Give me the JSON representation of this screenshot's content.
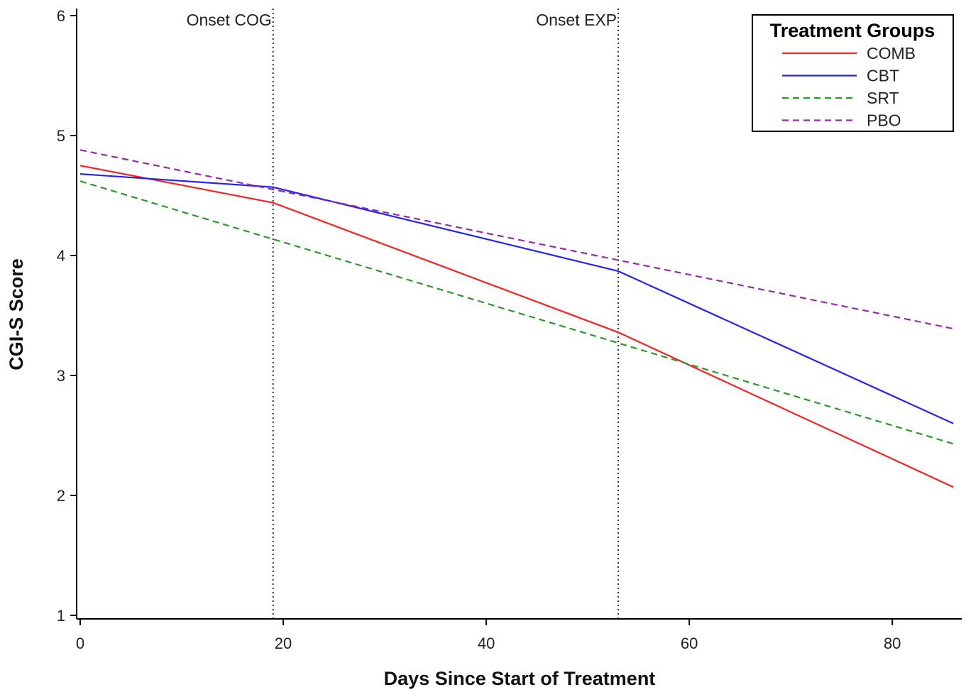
{
  "chart_data": {
    "type": "line",
    "xlabel": "Days Since Start of Treatment",
    "ylabel": "CGI-S Score",
    "xlim": [
      0,
      86
    ],
    "ylim": [
      1,
      6
    ],
    "xticks": [
      0,
      20,
      40,
      60,
      80
    ],
    "yticks": [
      1,
      2,
      3,
      4,
      5,
      6
    ],
    "grid": false,
    "legend": {
      "title": "Treatment Groups",
      "position": "top-right"
    },
    "reference_lines": [
      {
        "x": 19,
        "label": "Onset COG"
      },
      {
        "x": 53,
        "label": "Onset EXP"
      }
    ],
    "series": [
      {
        "name": "COMB",
        "color": "#ff2020",
        "dash": "solid",
        "x": [
          0,
          19,
          53,
          86
        ],
        "y": [
          4.75,
          4.44,
          3.36,
          2.07
        ]
      },
      {
        "name": "CBT",
        "color": "#2222ff",
        "dash": "solid",
        "x": [
          0,
          19,
          53,
          86
        ],
        "y": [
          4.68,
          4.57,
          3.87,
          2.6
        ]
      },
      {
        "name": "SRT",
        "color": "#2a9a2a",
        "dash": "dashed",
        "x": [
          0,
          86
        ],
        "y": [
          4.62,
          2.43
        ]
      },
      {
        "name": "PBO",
        "color": "#9a2aaa",
        "dash": "dashed",
        "x": [
          0,
          86
        ],
        "y": [
          4.88,
          3.39
        ]
      }
    ]
  }
}
